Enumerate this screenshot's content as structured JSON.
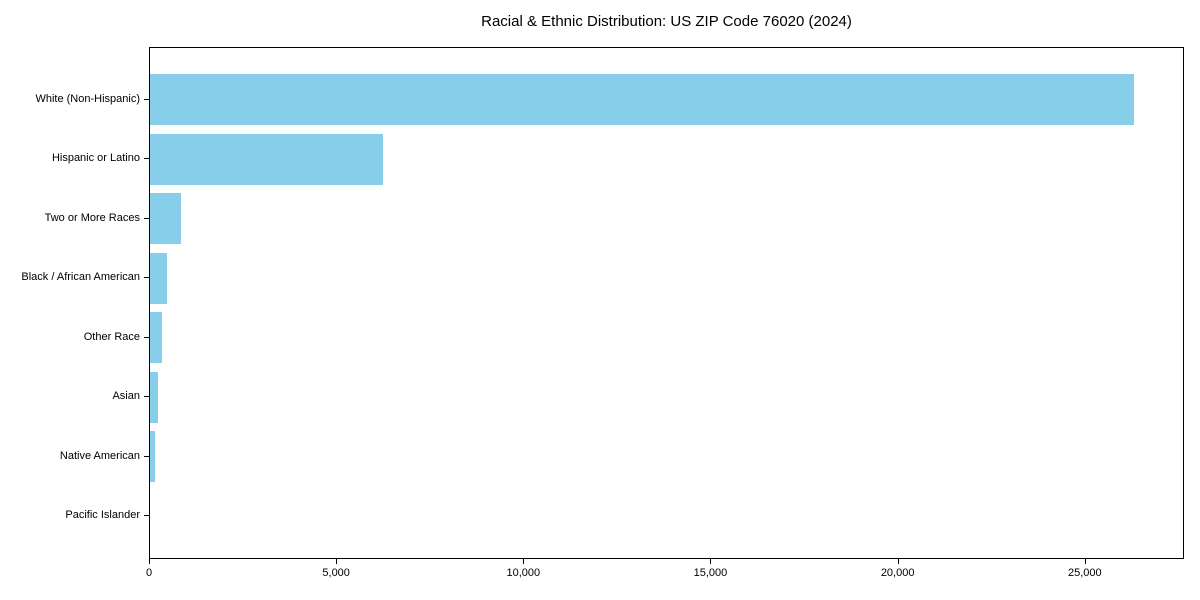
{
  "chart_data": {
    "type": "bar",
    "orientation": "horizontal",
    "title": "Racial & Ethnic Distribution: US ZIP Code 76020 (2024)",
    "categories": [
      "White (Non-Hispanic)",
      "Hispanic or Latino",
      "Two or More Races",
      "Black / African American",
      "Other Race",
      "Asian",
      "Native American",
      "Pacific Islander"
    ],
    "values": [
      26300,
      6220,
      830,
      450,
      320,
      210,
      130,
      0
    ],
    "xlabel": "",
    "ylabel": "",
    "xlim": [
      0,
      27650
    ],
    "x_ticks": [
      0,
      5000,
      10000,
      15000,
      20000,
      25000
    ],
    "x_tick_labels": [
      "0",
      "5,000",
      "10,000",
      "15,000",
      "20,000",
      "25,000"
    ],
    "bar_color": "#87CEEB",
    "text_color": "#000000",
    "spine_color": "#000000",
    "background_color": "#ffffff",
    "grid": false,
    "legend": null
  }
}
